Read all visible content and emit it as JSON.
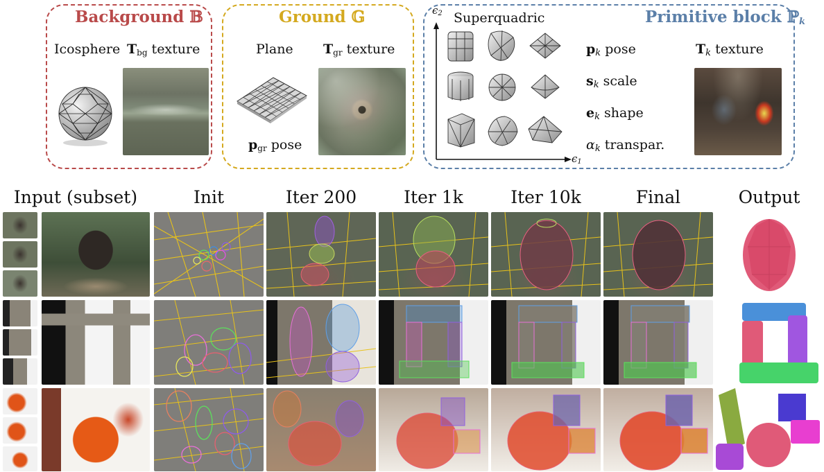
{
  "panels": {
    "background": {
      "title": "Background",
      "symbol": "𝔹",
      "sphere_label": "Icosphere",
      "texture_bold": "T",
      "texture_sub": "bg",
      "texture_rest": " texture",
      "color": "#b94a4a"
    },
    "ground": {
      "title": "Ground",
      "symbol": "𝔾",
      "plane_label": "Plane",
      "texture_bold": "T",
      "texture_sub": "gr",
      "texture_rest": " texture",
      "pose_bold": "p",
      "pose_sub": "gr",
      "pose_rest": " pose",
      "color": "#d4a91f"
    },
    "primitive": {
      "title": "Primitive block",
      "symbol": "ℙ",
      "symbol_sub": "k",
      "sq_label": "Superquadric",
      "axis_x": "ϵ",
      "axis_x_sub": "1",
      "axis_y": "ϵ",
      "axis_y_sub": "2",
      "params": [
        {
          "bold": "p",
          "sub": "k",
          "rest": " pose"
        },
        {
          "bold": "s",
          "sub": "k",
          "rest": " scale"
        },
        {
          "bold": "e",
          "sub": "k",
          "rest": " shape"
        },
        {
          "bold": "α",
          "sub": "k",
          "rest": " transpar."
        }
      ],
      "texture_bold": "T",
      "texture_sub": "k",
      "texture_rest": " texture",
      "color": "#5b7fa8"
    }
  },
  "columns": [
    "Input (subset)",
    "Init",
    "Iter 200",
    "Iter 1k",
    "Iter 10k",
    "Final",
    "Output"
  ],
  "icons": {
    "sphere": "icosphere-icon",
    "plane": "plane-mesh-icon",
    "superquadric": "superquadric-icon"
  }
}
